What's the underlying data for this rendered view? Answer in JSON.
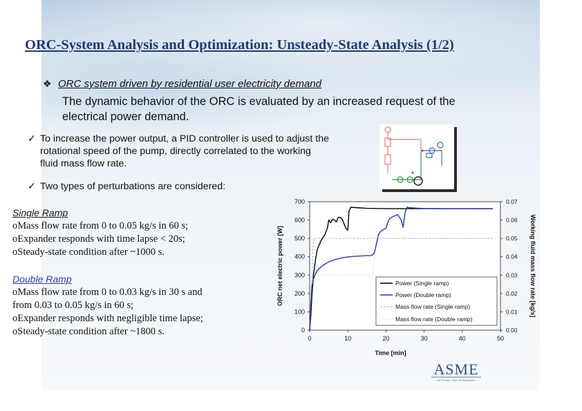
{
  "title": "ORC-System Analysis and Optimization: Unsteady-State Analysis (1/2)",
  "section": {
    "bullet": "❖",
    "heading": "ORC system driven by residential user electricity demand",
    "text": "The dynamic behavior of the ORC is evaluated by an increased request  of the electrical power demand."
  },
  "bullets": [
    {
      "mark": "✓",
      "lines": [
        "To increase the power output, a PID controller is used to adjust the",
        "rotational speed of the pump, directly correlated to the working",
        "fluid mass flow rate."
      ]
    },
    {
      "mark": "✓",
      "lines": [
        "Two types of perturbations are considered:"
      ]
    }
  ],
  "single_ramp": {
    "heading": "Single Ramp",
    "items": [
      "oMass flow rate from 0 to 0.05 kg/s in 60 s;",
      "oExpander responds with time lapse < 20s;",
      "oSteady-state condition after ~1000 s."
    ]
  },
  "double_ramp": {
    "heading": "Double Ramp",
    "items": [
      "oMass flow rate from 0 to 0.03 kg/s in 30 s and",
      "from 0.03 to 0.05 kg/s in 60 s;",
      "oExpander responds with negligible time lapse;",
      "oSteady-state condition after ~1800 s."
    ]
  },
  "logo": {
    "text": "ASME",
    "tagline": "SETTING THE STANDARD"
  },
  "colors": {
    "title": "#1f3a73",
    "single": "#000000",
    "double": "#2b3aa6",
    "flow": "#9fb7d6"
  },
  "chart_data": {
    "type": "line",
    "xlabel": "Time [min]",
    "ylabel": "ORC net electric power [W]",
    "y2label": "Working fluid mass flow rate [kg/s]",
    "xlim": [
      0,
      50
    ],
    "ylim": [
      0,
      700
    ],
    "y2lim": [
      0,
      0.07
    ],
    "xticks": [
      0,
      10,
      20,
      30,
      40,
      50
    ],
    "yticks": [
      0,
      100,
      200,
      300,
      400,
      500,
      600,
      700
    ],
    "y2ticks": [
      "0.00",
      "0.01",
      "0.02",
      "0.03",
      "0.04",
      "0.05",
      "0.06",
      "0.07"
    ],
    "legend_position": "bottom-right",
    "series": [
      {
        "name": "Power (Single ramp)",
        "axis": "left",
        "style": "solid",
        "x": [
          0,
          0.3,
          0.6,
          1,
          1.5,
          2,
          3,
          4,
          4.7,
          5,
          5.5,
          6,
          6.5,
          7,
          7.5,
          8,
          8.5,
          9,
          9.5,
          10,
          10.3,
          10.8,
          12,
          15,
          20,
          25,
          30,
          40,
          48
        ],
        "y": [
          0,
          80,
          190,
          300,
          380,
          440,
          490,
          520,
          560,
          600,
          585,
          605,
          600,
          590,
          615,
          615,
          605,
          580,
          555,
          545,
          650,
          670,
          668,
          664,
          662,
          662,
          662,
          662,
          662
        ]
      },
      {
        "name": "Power (Double ramp)",
        "axis": "left",
        "style": "solid",
        "x": [
          0,
          0.3,
          0.6,
          1,
          1.5,
          2,
          3,
          4,
          5,
          6,
          7,
          8,
          9,
          10,
          11,
          12,
          13,
          14,
          15,
          16,
          16.5,
          17,
          17.5,
          18,
          18.5,
          19,
          19.5,
          20,
          20.5,
          21,
          22,
          23,
          24,
          24.5,
          25,
          25.5,
          26,
          28,
          30,
          35,
          40,
          45,
          48
        ],
        "y": [
          0,
          140,
          240,
          280,
          305,
          325,
          345,
          360,
          372,
          380,
          387,
          392,
          396,
          399,
          401,
          403,
          404,
          405,
          406,
          407,
          410,
          425,
          470,
          520,
          535,
          545,
          550,
          555,
          590,
          610,
          620,
          630,
          600,
          560,
          640,
          670,
          668,
          665,
          663,
          662,
          662,
          662,
          662
        ]
      },
      {
        "name": "Mass flow rate (Single ramp)",
        "axis": "right",
        "style": "dashed",
        "x": [
          0,
          1,
          48
        ],
        "y": [
          0,
          0.05,
          0.05
        ]
      },
      {
        "name": "Mass flow rate (Double ramp)",
        "axis": "right",
        "style": "dotted",
        "x": [
          0,
          0.5,
          16.5,
          17.5,
          48
        ],
        "y": [
          0,
          0.03,
          0.03,
          0.05,
          0.05
        ]
      }
    ]
  }
}
